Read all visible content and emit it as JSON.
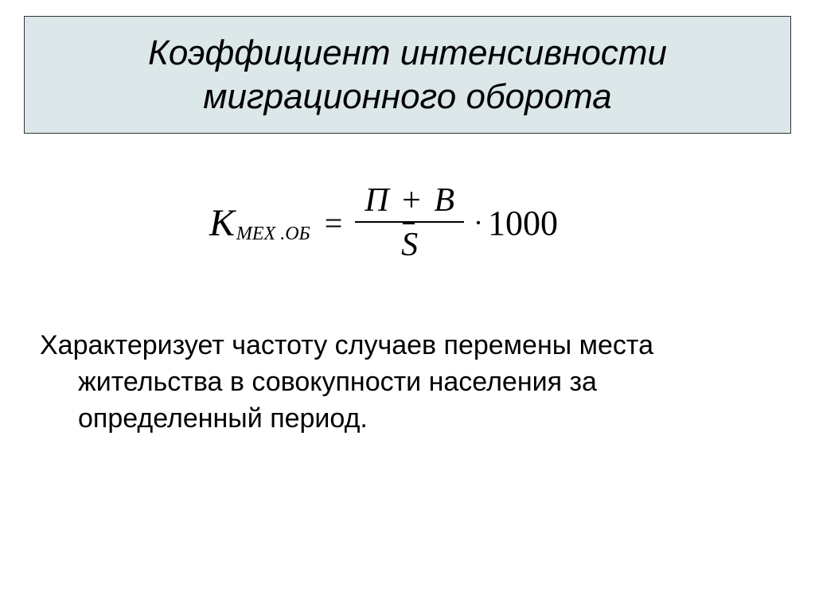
{
  "slide": {
    "title": "Коэффициент интенсивности миграционного оборота",
    "title_bg_color": "#dbe7e8",
    "title_border_color": "#333333",
    "title_font_style": "italic",
    "title_fontsize": 44,
    "formula": {
      "coef_symbol": "К",
      "coef_subscript": "МЕХ .ОБ",
      "eq": "=",
      "numerator_left": "П",
      "plus": "+",
      "numerator_right": "В",
      "denominator": "S",
      "denominator_has_overbar": true,
      "dot": "·",
      "multiplier": "1000",
      "font_family": "Times New Roman",
      "fontsize": 44,
      "text_color": "#000000"
    },
    "description": "Характеризует частоту случаев перемены места жительства в совокупности населения за определенный период.",
    "description_fontsize": 34,
    "background_color": "#ffffff"
  }
}
